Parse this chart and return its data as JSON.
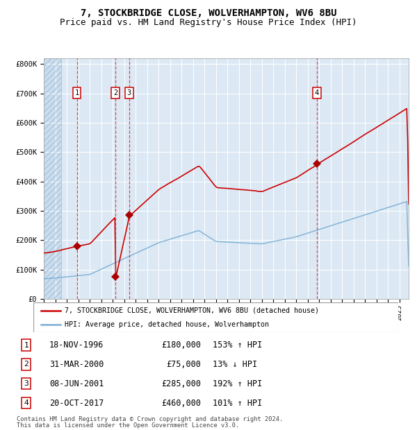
{
  "title": "7, STOCKBRIDGE CLOSE, WOLVERHAMPTON, WV6 8BU",
  "subtitle": "Price paid vs. HM Land Registry's House Price Index (HPI)",
  "title_fontsize": 10,
  "subtitle_fontsize": 9,
  "background_color": "#dce9f5",
  "transactions": [
    {
      "num": 1,
      "date_dec": 1996.89,
      "price": 180000,
      "label": "18-NOV-1996",
      "pct": "153%",
      "dir": "↑"
    },
    {
      "num": 2,
      "date_dec": 2000.25,
      "price": 75000,
      "label": "31-MAR-2000",
      "pct": "13%",
      "dir": "↓"
    },
    {
      "num": 3,
      "date_dec": 2001.44,
      "price": 285000,
      "label": "08-JUN-2001",
      "pct": "192%",
      "dir": "↑"
    },
    {
      "num": 4,
      "date_dec": 2017.8,
      "price": 460000,
      "label": "20-OCT-2017",
      "pct": "101%",
      "dir": "↑"
    }
  ],
  "legend_red": "7, STOCKBRIDGE CLOSE, WOLVERHAMPTON, WV6 8BU (detached house)",
  "legend_blue": "HPI: Average price, detached house, Wolverhampton",
  "footnote1": "Contains HM Land Registry data © Crown copyright and database right 2024.",
  "footnote2": "This data is licensed under the Open Government Licence v3.0.",
  "red_color": "#cc0000",
  "blue_color": "#7aadd4",
  "marker_color": "#aa0000",
  "dashed_color": "#cc3333",
  "ylim_max": 820000,
  "xlim_min": 1994.0,
  "xlim_max": 2025.8
}
